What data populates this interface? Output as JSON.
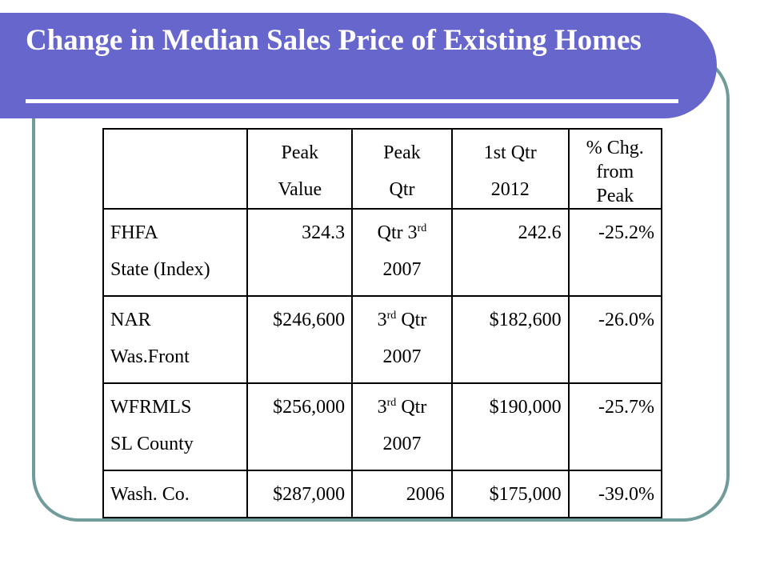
{
  "slide": {
    "title": "Change in Median Sales Price of Existing Homes"
  },
  "table": {
    "headers": {
      "peak_value": [
        "Peak",
        "Value"
      ],
      "peak_qtr": [
        "Peak",
        "Qtr"
      ],
      "first_qtr": [
        "1st Qtr",
        "2012"
      ],
      "pct_change": [
        "% Chg.",
        "from",
        "Peak"
      ]
    },
    "rows": [
      {
        "label": [
          "FHFA",
          "State (Index)"
        ],
        "peak_value": "324.3",
        "peak_qtr": {
          "pre": "Qtr 3",
          "sup": "rd",
          "post": "",
          "line2": "2007"
        },
        "first_qtr": "242.6",
        "pct_change": "-25.2%"
      },
      {
        "label": [
          "NAR",
          "Was.Front"
        ],
        "peak_value": "$246,600",
        "peak_qtr": {
          "pre": "3",
          "sup": "rd",
          "post": " Qtr",
          "line2": "2007"
        },
        "first_qtr": "$182,600",
        "pct_change": "-26.0%"
      },
      {
        "label": [
          "WFRMLS",
          "SL County"
        ],
        "peak_value": "$256,000",
        "peak_qtr": {
          "pre": "3",
          "sup": "rd",
          "post": " Qtr",
          "line2": "2007"
        },
        "first_qtr": "$190,000",
        "pct_change": "-25.7%"
      },
      {
        "label": [
          "Wash. Co.",
          ""
        ],
        "peak_value": "$287,000",
        "peak_qtr": {
          "pre": "2006",
          "sup": "",
          "post": "",
          "line2": ""
        },
        "first_qtr": "$175,000",
        "pct_change": "-39.0%"
      }
    ]
  },
  "colors": {
    "title_bar": "#6666cc",
    "frame_border": "#6f9b9a",
    "title_text": "#ffffff"
  }
}
